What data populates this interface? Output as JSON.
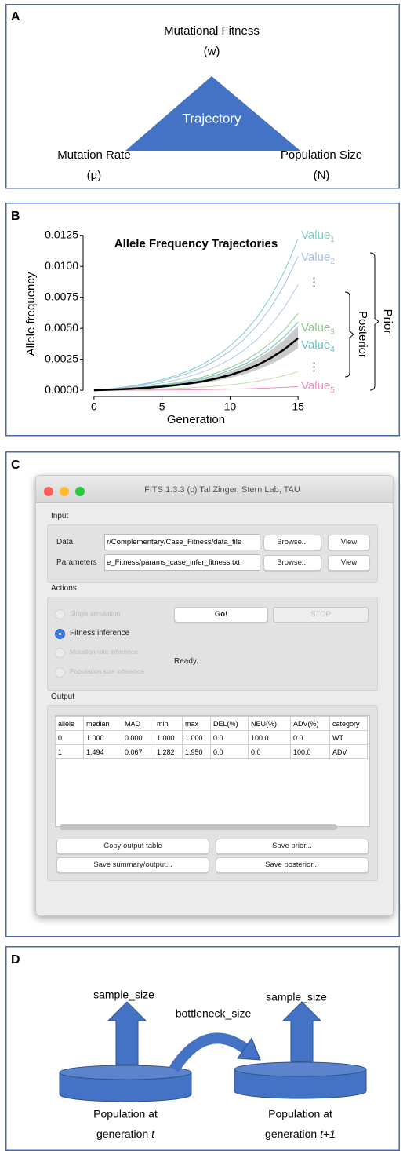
{
  "panel_a": {
    "label": "A",
    "center": "Trajectory",
    "top": [
      "Mutational Fitness",
      "(w)"
    ],
    "left": [
      "Mutation Rate",
      "(μ)"
    ],
    "right": [
      "Population Size",
      "(N)"
    ]
  },
  "chart_data": {
    "type": "line",
    "panel_label": "B",
    "title": "Allele Frequency Trajectories",
    "x_label": "Generation",
    "y_label": "Allele frequency",
    "x": [
      0,
      1,
      2,
      3,
      4,
      5,
      6,
      7,
      8,
      9,
      10,
      11,
      12,
      13,
      14,
      15
    ],
    "xlim": [
      -0.8,
      15.8
    ],
    "ylim": [
      -0.0005,
      0.0128
    ],
    "xticks": [
      0,
      5,
      10,
      15
    ],
    "yticks": [
      {
        "value": 0,
        "label": "0.0000"
      },
      0.0025,
      {
        "value": 0.005,
        "label": "0.0050"
      },
      0.0075,
      {
        "value": 0.01,
        "label": "0.0100"
      },
      0.0125
    ],
    "band": {
      "color": "#b4b4b4",
      "lower": [
        0,
        3e-05,
        6e-05,
        0.00011,
        0.00017,
        0.00024,
        0.00033,
        0.00044,
        0.00059,
        0.00077,
        0.001,
        0.00128,
        0.00165,
        0.0021,
        0.00268,
        0.0034
      ],
      "upper": [
        0,
        4e-05,
        0.0001,
        0.00017,
        0.00025,
        0.00037,
        0.0005,
        0.00068,
        0.0009,
        0.00117,
        0.00152,
        0.00196,
        0.00252,
        0.00321,
        0.00409,
        0.0052
      ]
    },
    "series": [
      {
        "color": "#7ccfc5",
        "values": [
          0,
          0.0001,
          0.00023,
          0.00039,
          0.0006,
          0.00086,
          0.00118,
          0.00159,
          0.00211,
          0.00275,
          0.00357,
          0.0046,
          0.0059,
          0.00754,
          0.0096,
          0.0122
        ]
      },
      {
        "color": "#9ec2e6",
        "values": [
          0,
          9e-05,
          0.0002,
          0.00035,
          0.00053,
          0.00076,
          0.00105,
          0.00141,
          0.00186,
          0.00244,
          0.00316,
          0.00408,
          0.00523,
          0.00668,
          0.0085,
          0.0108
        ]
      },
      {
        "color": "#b5c9e8",
        "values": [
          0,
          7e-05,
          0.00016,
          0.00027,
          0.00042,
          0.0006,
          0.00082,
          0.00111,
          0.00147,
          0.00192,
          0.00249,
          0.00321,
          0.00411,
          0.00525,
          0.00669,
          0.0085
        ]
      },
      {
        "color": "#8dc88b",
        "values": [
          0,
          5e-05,
          0.00012,
          0.0002,
          0.0003,
          0.00044,
          0.0006,
          0.00081,
          0.00107,
          0.0014,
          0.00182,
          0.00234,
          0.003,
          0.00383,
          0.00488,
          0.0062
        ]
      },
      {
        "color": "#66bfc4",
        "values": [
          0,
          5e-05,
          0.0001,
          0.00018,
          0.00027,
          0.00039,
          0.00053,
          0.00072,
          0.00095,
          0.00124,
          0.00161,
          0.00208,
          0.00266,
          0.0034,
          0.00433,
          0.0055
        ]
      },
      {
        "color": "#bfe0a8",
        "values": [
          0,
          1e-05,
          3e-05,
          5e-05,
          7e-05,
          0.00011,
          0.00015,
          0.0002,
          0.00026,
          0.00034,
          0.00044,
          0.00057,
          0.00073,
          0.00093,
          0.00118,
          0.0015
        ]
      },
      {
        "color": "#f08cbf",
        "values": [
          0,
          0,
          1e-05,
          1e-05,
          1e-05,
          2e-05,
          3e-05,
          4e-05,
          5e-05,
          7e-05,
          9e-05,
          0.00011,
          0.00015,
          0.00019,
          0.00024,
          0.0003
        ]
      },
      {
        "color": "#000000",
        "values": [
          0,
          4e-05,
          8e-05,
          0.00014,
          0.00021,
          0.00029,
          0.00041,
          0.00055,
          0.00072,
          0.00095,
          0.00123,
          0.00159,
          0.00203,
          0.0026,
          0.00331,
          0.0042
        ]
      }
    ],
    "annotations": [
      {
        "text": "Value",
        "sub": "1",
        "color": "#7ccfc5"
      },
      {
        "text": "Value",
        "sub": "2",
        "color": "#9ec2e6"
      },
      {
        "text": "⋮"
      },
      {
        "text": "Value",
        "sub": "3",
        "color": "#8dc88b"
      },
      {
        "text": "Value",
        "sub": "4",
        "color": "#66bfc4"
      },
      {
        "text": "⋮"
      },
      {
        "text": "Value",
        "sub": "5",
        "color": "#f08cbf"
      }
    ],
    "brackets": [
      {
        "text": "Posterior"
      },
      {
        "text": "Prior"
      }
    ]
  },
  "panel_c": {
    "label": "C",
    "window_title": "FITS 1.3.3 (c) Tal Zinger, Stern Lab, TAU",
    "input": {
      "heading": "Input",
      "rows": [
        {
          "label": "Data",
          "field": "r/Complementary/Case_Fitness/data_file",
          "browse": "Browse...",
          "view": "View"
        },
        {
          "label": "Parameters",
          "field": "e_Fitness/params_case_infer_fitness.txt",
          "browse": "Browse...",
          "view": "View"
        }
      ]
    },
    "actions": {
      "heading": "Actions",
      "options": [
        {
          "text": "Single simulation",
          "enabled": false,
          "selected": false
        },
        {
          "text": "Fitness inference",
          "enabled": true,
          "selected": true
        },
        {
          "text": "Mutation rate inference",
          "enabled": false,
          "selected": false
        },
        {
          "text": "Population size inference",
          "enabled": false,
          "selected": false
        }
      ],
      "go": "Go!",
      "stop": "STOP",
      "status": "Ready."
    },
    "output": {
      "heading": "Output",
      "table": {
        "header": [
          "allele",
          "median",
          "MAD",
          "min",
          "max",
          "DEL(%)",
          "NEU(%)",
          "ADV(%)",
          "category"
        ],
        "rows": [
          [
            "0",
            "1.000",
            "0.000",
            "1.000",
            "1.000",
            "0.0",
            "100.0",
            "0.0",
            "WT"
          ],
          [
            "1",
            "1.494",
            "0.067",
            "1.282",
            "1.950",
            "0.0",
            "0.0",
            "100.0",
            "ADV"
          ]
        ]
      },
      "buttons": [
        "Copy output table",
        "Save prior...",
        "Save summary/output...",
        "Save posterior..."
      ]
    }
  },
  "panel_d": {
    "label": "D",
    "left_up": "sample_size",
    "right_up": "sample_size",
    "transfer": "bottleneck_size",
    "left": {
      "line1": "Population at",
      "line2": "generation",
      "var": "t"
    },
    "right": {
      "line1": "Population at",
      "line2": "generation",
      "var": "t+1"
    }
  }
}
